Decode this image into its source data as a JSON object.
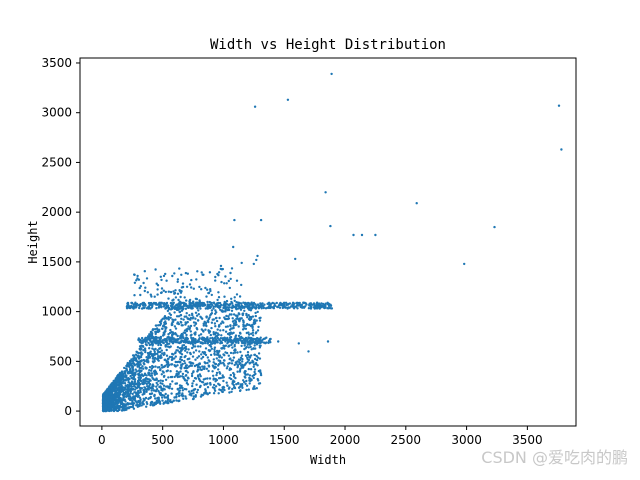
{
  "chart_data": {
    "type": "scatter",
    "title": "Width vs Height Distribution",
    "xlabel": "Width",
    "ylabel": "Height",
    "xlim": [
      -180,
      3900
    ],
    "ylim": [
      -150,
      3550
    ],
    "xticks": [
      0,
      500,
      1000,
      1500,
      2000,
      2500,
      3000,
      3500
    ],
    "yticks": [
      0,
      500,
      1000,
      1500,
      2000,
      2500,
      3000,
      3500
    ],
    "series": [
      {
        "color": "#1f77b4",
        "points": [
          [
            1890,
            3390
          ],
          [
            1530,
            3130
          ],
          [
            1260,
            3060
          ],
          [
            3760,
            3070
          ],
          [
            3780,
            2630
          ],
          [
            1840,
            2200
          ],
          [
            2590,
            2090
          ],
          [
            1090,
            1920
          ],
          [
            1310,
            1920
          ],
          [
            1880,
            1860
          ],
          [
            3230,
            1850
          ],
          [
            2070,
            1770
          ],
          [
            2140,
            1770
          ],
          [
            2250,
            1770
          ],
          [
            1080,
            1650
          ],
          [
            1280,
            1560
          ],
          [
            1270,
            1520
          ],
          [
            1590,
            1530
          ],
          [
            2980,
            1480
          ],
          [
            1250,
            1480
          ],
          [
            1150,
            1490
          ],
          [
            980,
            1460
          ],
          [
            1760,
            1060
          ],
          [
            1880,
            1070
          ],
          [
            1860,
            700
          ],
          [
            1700,
            600
          ],
          [
            1620,
            680
          ],
          [
            1300,
            640
          ],
          [
            1450,
            700
          ]
        ],
        "cluster": {
          "description_points_generated": true,
          "x_range": [
            0,
            1900
          ],
          "y_range": [
            0,
            1450
          ],
          "plateau_y": [
            1050,
            700
          ]
        }
      }
    ]
  },
  "watermark": "CSDN @爱吃肉的鹏"
}
